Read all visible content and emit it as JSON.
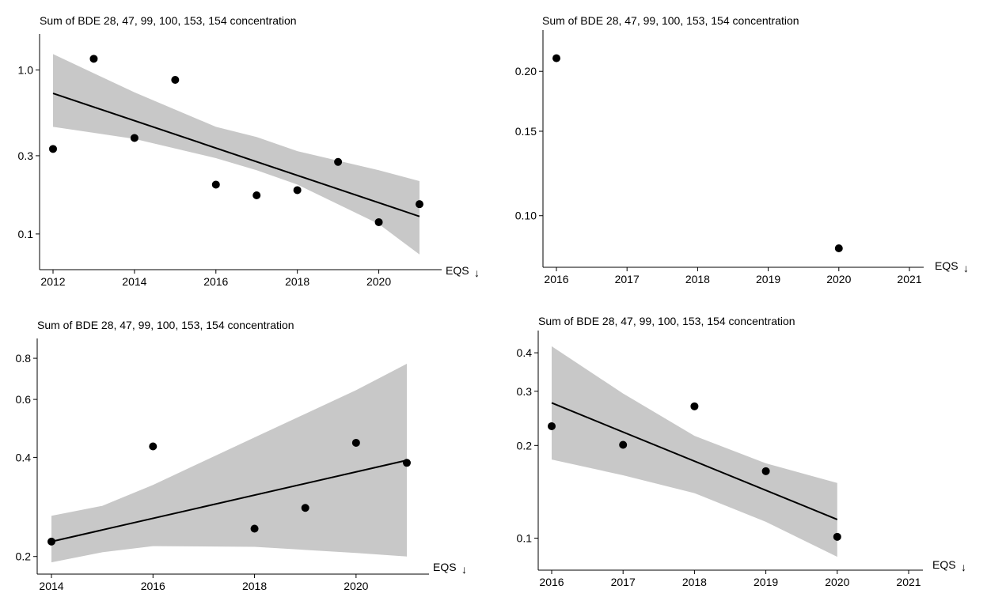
{
  "chart_data": [
    {
      "type": "scatter",
      "title": "Sum of BDE 28, 47, 99, 100, 153, 154 concentration",
      "xlabel": "",
      "ylabel": "",
      "y_scale": "log",
      "xlim": [
        2012,
        2021
      ],
      "ylim": [
        0.07,
        1.45
      ],
      "xticks": [
        2012,
        2014,
        2016,
        2018,
        2020
      ],
      "yticks": [
        0.1,
        0.3,
        1.0
      ],
      "ytick_labels": [
        "0.1",
        "0.3",
        "1.0"
      ],
      "points": [
        {
          "x": 2012,
          "y": 0.33
        },
        {
          "x": 2013,
          "y": 1.17
        },
        {
          "x": 2014,
          "y": 0.385
        },
        {
          "x": 2015,
          "y": 0.87
        },
        {
          "x": 2016,
          "y": 0.2
        },
        {
          "x": 2017,
          "y": 0.172
        },
        {
          "x": 2018,
          "y": 0.185
        },
        {
          "x": 2019,
          "y": 0.275
        },
        {
          "x": 2020,
          "y": 0.118
        },
        {
          "x": 2021,
          "y": 0.152
        }
      ],
      "trend": {
        "x": [
          2012,
          2021
        ],
        "y": [
          0.72,
          0.128
        ]
      },
      "band": {
        "x": [
          2012,
          2014,
          2016,
          2017,
          2018,
          2020,
          2021
        ],
        "lower": [
          0.45,
          0.38,
          0.29,
          0.245,
          0.2,
          0.115,
          0.075
        ],
        "upper": [
          1.25,
          0.73,
          0.45,
          0.39,
          0.32,
          0.245,
          0.21
        ]
      },
      "note_label": "EQS",
      "note_arrow": "↓"
    },
    {
      "type": "scatter",
      "title": "Sum of BDE 28, 47, 99, 100, 153, 154 concentration",
      "xlabel": "",
      "ylabel": "",
      "y_scale": "log",
      "xlim": [
        2016,
        2021
      ],
      "ylim": [
        0.082,
        0.233
      ],
      "xticks": [
        2016,
        2017,
        2018,
        2019,
        2020,
        2021
      ],
      "yticks": [
        0.1,
        0.15,
        0.2
      ],
      "ytick_labels": [
        "0.10",
        "0.15",
        "0.20"
      ],
      "points": [
        {
          "x": 2016,
          "y": 0.213
        },
        {
          "x": 2020,
          "y": 0.0855
        }
      ],
      "note_label": "EQS",
      "note_arrow": "↓"
    },
    {
      "type": "scatter",
      "title": "Sum of BDE 28, 47, 99, 100, 153, 154 concentration",
      "xlabel": "",
      "ylabel": "",
      "y_scale": "log",
      "xlim": [
        2014,
        2021
      ],
      "ylim": [
        0.19,
        0.86
      ],
      "xticks": [
        2014,
        2016,
        2018,
        2020
      ],
      "yticks": [
        0.2,
        0.4,
        0.6,
        0.8
      ],
      "ytick_labels": [
        "0.2",
        "0.4",
        "0.6",
        "0.8"
      ],
      "points": [
        {
          "x": 2014,
          "y": 0.222
        },
        {
          "x": 2016,
          "y": 0.432
        },
        {
          "x": 2018,
          "y": 0.243
        },
        {
          "x": 2019,
          "y": 0.281
        },
        {
          "x": 2020,
          "y": 0.443
        },
        {
          "x": 2021,
          "y": 0.385
        }
      ],
      "trend": {
        "x": [
          2014,
          2021
        ],
        "y": [
          0.222,
          0.392
        ]
      },
      "band": {
        "x": [
          2014,
          2015,
          2016,
          2018,
          2020,
          2021
        ],
        "lower": [
          0.192,
          0.206,
          0.215,
          0.214,
          0.205,
          0.2
        ],
        "upper": [
          0.266,
          0.285,
          0.33,
          0.46,
          0.64,
          0.77
        ]
      },
      "note_label": "EQS",
      "note_arrow": "↓"
    },
    {
      "type": "scatter",
      "title": "Sum of BDE 28, 47, 99, 100, 153, 154 concentration",
      "xlabel": "",
      "ylabel": "",
      "y_scale": "log",
      "xlim": [
        2016,
        2021
      ],
      "ylim": [
        0.085,
        0.44
      ],
      "xticks": [
        2016,
        2017,
        2018,
        2019,
        2020,
        2021
      ],
      "yticks": [
        0.1,
        0.2,
        0.3,
        0.4
      ],
      "ytick_labels": [
        "0.1",
        "0.2",
        "0.3",
        "0.4"
      ],
      "points": [
        {
          "x": 2016,
          "y": 0.231
        },
        {
          "x": 2017,
          "y": 0.201
        },
        {
          "x": 2018,
          "y": 0.268
        },
        {
          "x": 2019,
          "y": 0.165
        },
        {
          "x": 2020,
          "y": 0.101
        }
      ],
      "trend": {
        "x": [
          2016,
          2020
        ],
        "y": [
          0.275,
          0.115
        ]
      },
      "band": {
        "x": [
          2016,
          2017,
          2018,
          2019,
          2020
        ],
        "lower": [
          0.18,
          0.16,
          0.14,
          0.113,
          0.087
        ],
        "upper": [
          0.42,
          0.295,
          0.215,
          0.175,
          0.151
        ]
      },
      "note_label": "EQS",
      "note_arrow": "↓"
    }
  ],
  "colors": {
    "band": "#c8c8c8",
    "line": "#000000",
    "point": "#000000",
    "axis": "#000000"
  }
}
